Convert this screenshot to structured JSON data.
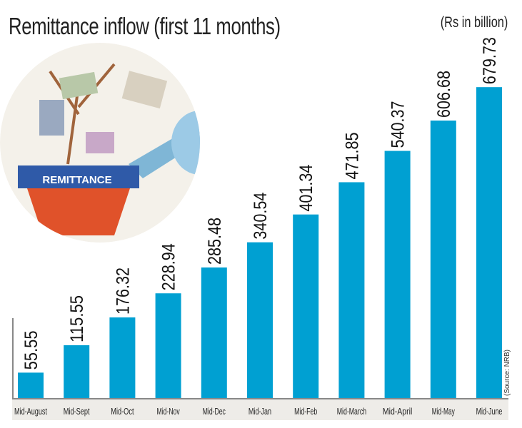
{
  "chart_data": {
    "type": "bar",
    "title": "Remittance inflow (first 11 months)",
    "unit_label": "(Rs in billion)",
    "source": "(Source: NRB)",
    "categories": [
      "Mid-August",
      "Mid-Sept",
      "Mid-Oct",
      "Mid-Nov",
      "Mid-Dec",
      "Mid-Jan",
      "Mid-Feb",
      "Mid-March",
      "Mid-April",
      "Mid-May",
      "Mid-June"
    ],
    "values": [
      55.55,
      115.55,
      176.32,
      228.94,
      285.48,
      340.54,
      401.34,
      471.85,
      540.37,
      606.68,
      679.73
    ],
    "value_labels": [
      "55.55",
      "115.55",
      "176.32",
      "228.94",
      "285.48",
      "340.54",
      "401.34",
      "471.85",
      "540.37",
      "606.68",
      "679.73"
    ],
    "ylim": [
      0,
      680
    ],
    "bar_color": "#00a0d2",
    "grid": false
  },
  "illustration": {
    "pot_text": "REMITTANCE"
  }
}
